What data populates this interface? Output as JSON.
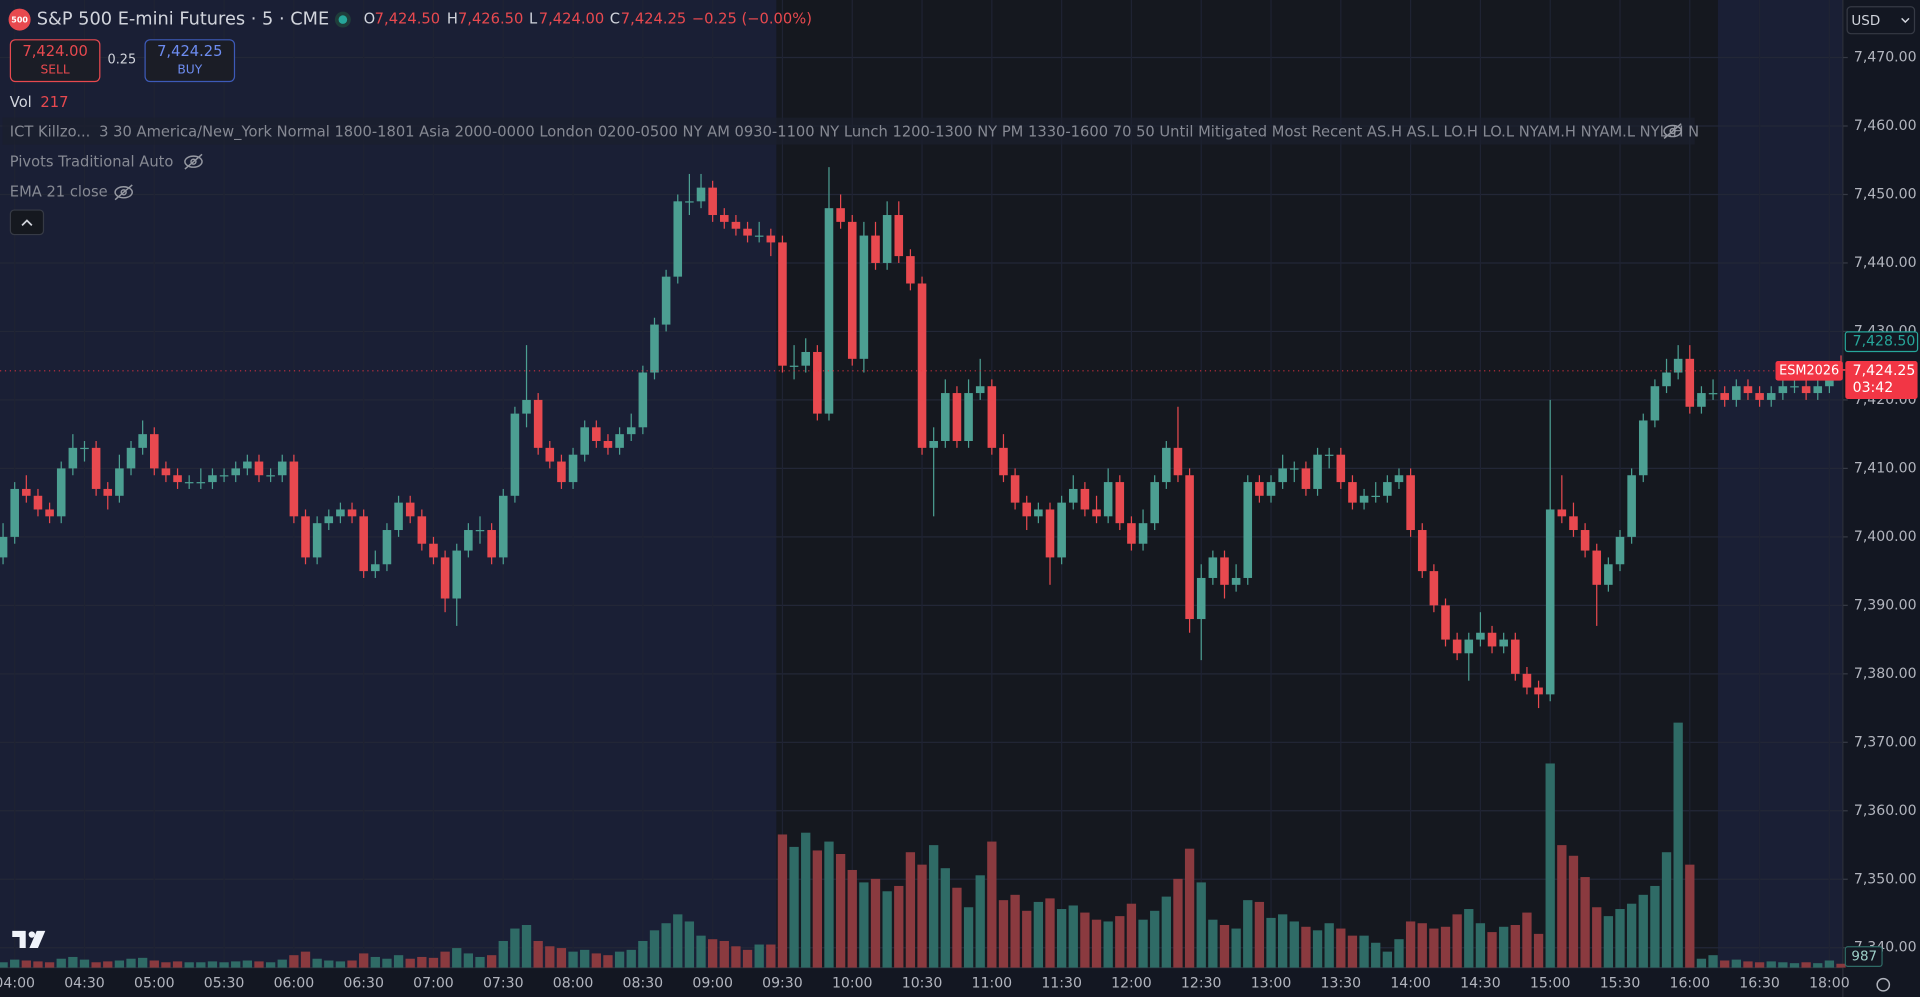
{
  "header": {
    "symbol_badge": "500",
    "title": "S&P 500 E-mini Futures · 5 · CME",
    "ohlc_legend": [
      {
        "key": "O",
        "value": "7,424.50"
      },
      {
        "key": "H",
        "value": "7,426.50"
      },
      {
        "key": "L",
        "value": "7,424.00"
      },
      {
        "key": "C",
        "value": "7,424.25"
      }
    ],
    "change": "−0.25 (−0.00%)",
    "sell": {
      "price": "7,424.00",
      "label": "SELL"
    },
    "spread": "0.25",
    "buy": {
      "price": "7,424.25",
      "label": "BUY"
    },
    "volume_legend": {
      "label": "Vol",
      "value": "217"
    },
    "indicators": [
      {
        "name": "ICT Killzo...",
        "params": "3 30 America/New_York Normal 1800-1801 Asia 2000-0000 London 0200-0500 NY AM 0930-1100 NY Lunch 1200-1300 NY PM 1330-1600 70 50 Until Mitigated Most Recent AS.H AS.L LO.H LO.L NYAM.H NYAM.L NYL.H N"
      },
      {
        "name": "Pivots Traditional Auto"
      },
      {
        "name": "EMA 21 close"
      }
    ],
    "currency": "USD"
  },
  "chart_data": {
    "type": "candlestick",
    "categories": [
      null,
      "04:00",
      null,
      null,
      null,
      null,
      null,
      "04:30",
      null,
      null,
      null,
      null,
      null,
      "05:00",
      null,
      null,
      null,
      null,
      null,
      "05:30",
      null,
      null,
      null,
      null,
      null,
      "06:00",
      null,
      null,
      null,
      null,
      null,
      "06:30",
      null,
      null,
      null,
      null,
      null,
      "07:00",
      null,
      null,
      null,
      null,
      null,
      "07:30",
      null,
      null,
      null,
      null,
      null,
      "08:00",
      null,
      null,
      null,
      null,
      null,
      "08:30",
      null,
      null,
      null,
      null,
      null,
      "09:00",
      null,
      null,
      null,
      null,
      null,
      "09:30",
      null,
      null,
      null,
      null,
      null,
      "10:00",
      null,
      null,
      null,
      null,
      null,
      "10:30",
      null,
      null,
      null,
      null,
      null,
      "11:00",
      null,
      null,
      null,
      null,
      null,
      "11:30",
      null,
      null,
      null,
      null,
      null,
      "12:00",
      null,
      null,
      null,
      null,
      null,
      "12:30",
      null,
      null,
      null,
      null,
      null,
      "13:00",
      null,
      null,
      null,
      null,
      null,
      "13:30",
      null,
      null,
      null,
      null,
      null,
      "14:00",
      null,
      null,
      null,
      null,
      null,
      "14:30",
      null,
      null,
      null,
      null,
      null,
      "15:00",
      null,
      null,
      null,
      null,
      null,
      "15:30",
      null,
      null,
      null,
      null,
      null,
      "16:00",
      null,
      null,
      null,
      null,
      null,
      "16:30",
      null,
      null,
      null,
      null,
      null,
      "18:00",
      null
    ],
    "ohlc": [
      [
        7397,
        7402,
        7396,
        7400
      ],
      [
        7400,
        7408,
        7399,
        7407
      ],
      [
        7407,
        7409,
        7405,
        7406
      ],
      [
        7406,
        7407,
        7403,
        7404
      ],
      [
        7404,
        7405,
        7402,
        7403
      ],
      [
        7403,
        7411,
        7402,
        7410
      ],
      [
        7410,
        7415,
        7409,
        7413
      ],
      [
        7413,
        7414,
        7411,
        7413
      ],
      [
        7413,
        7414,
        7406,
        7407
      ],
      [
        7407,
        7408,
        7404,
        7406
      ],
      [
        7406,
        7412,
        7405,
        7410
      ],
      [
        7410,
        7414,
        7409,
        7413
      ],
      [
        7413,
        7417,
        7412,
        7415
      ],
      [
        7415,
        7416,
        7409,
        7410
      ],
      [
        7410,
        7411,
        7408,
        7409
      ],
      [
        7409,
        7410,
        7407,
        7408
      ],
      [
        7408,
        7409,
        7407,
        7408
      ],
      [
        7408,
        7410,
        7407,
        7408
      ],
      [
        7408,
        7410,
        7407,
        7409
      ],
      [
        7409,
        7410,
        7408,
        7409
      ],
      [
        7409,
        7411,
        7408,
        7410
      ],
      [
        7410,
        7412,
        7409,
        7411
      ],
      [
        7411,
        7412,
        7408,
        7409
      ],
      [
        7409,
        7410,
        7408,
        7409
      ],
      [
        7409,
        7412,
        7408,
        7411
      ],
      [
        7411,
        7412,
        7402,
        7403
      ],
      [
        7403,
        7404,
        7396,
        7397
      ],
      [
        7397,
        7403,
        7396,
        7402
      ],
      [
        7402,
        7404,
        7401,
        7403
      ],
      [
        7403,
        7405,
        7402,
        7404
      ],
      [
        7404,
        7405,
        7402,
        7403
      ],
      [
        7403,
        7404,
        7394,
        7395
      ],
      [
        7395,
        7398,
        7394,
        7396
      ],
      [
        7396,
        7402,
        7395,
        7401
      ],
      [
        7401,
        7406,
        7400,
        7405
      ],
      [
        7405,
        7406,
        7402,
        7403
      ],
      [
        7403,
        7404,
        7398,
        7399
      ],
      [
        7399,
        7400,
        7396,
        7397
      ],
      [
        7397,
        7398,
        7389,
        7391
      ],
      [
        7391,
        7399,
        7387,
        7398
      ],
      [
        7398,
        7402,
        7397,
        7401
      ],
      [
        7401,
        7403,
        7399,
        7401
      ],
      [
        7401,
        7402,
        7396,
        7397
      ],
      [
        7397,
        7407,
        7396,
        7406
      ],
      [
        7406,
        7419,
        7405,
        7418
      ],
      [
        7418,
        7428,
        7416,
        7420
      ],
      [
        7420,
        7421,
        7412,
        7413
      ],
      [
        7413,
        7414,
        7410,
        7411
      ],
      [
        7411,
        7412,
        7407,
        7408
      ],
      [
        7408,
        7413,
        7407,
        7412
      ],
      [
        7412,
        7417,
        7411,
        7416
      ],
      [
        7416,
        7417,
        7413,
        7414
      ],
      [
        7414,
        7415,
        7412,
        7413
      ],
      [
        7413,
        7416,
        7412,
        7415
      ],
      [
        7415,
        7418,
        7414,
        7416
      ],
      [
        7416,
        7425,
        7415,
        7424
      ],
      [
        7424,
        7432,
        7423,
        7431
      ],
      [
        7431,
        7439,
        7430,
        7438
      ],
      [
        7438,
        7450,
        7437,
        7449
      ],
      [
        7449,
        7453,
        7447,
        7449
      ],
      [
        7449,
        7453,
        7448,
        7451
      ],
      [
        7451,
        7452,
        7446,
        7447
      ],
      [
        7447,
        7448,
        7445,
        7446
      ],
      [
        7446,
        7447,
        7444,
        7445
      ],
      [
        7445,
        7446,
        7443,
        7444
      ],
      [
        7444,
        7446,
        7443,
        7444
      ],
      [
        7444,
        7445,
        7441,
        7443
      ],
      [
        7443,
        7444,
        7424,
        7425
      ],
      [
        7425,
        7428,
        7423,
        7425
      ],
      [
        7425,
        7429,
        7424,
        7427
      ],
      [
        7427,
        7428,
        7417,
        7418
      ],
      [
        7418,
        7454,
        7417,
        7448
      ],
      [
        7448,
        7450,
        7445,
        7446
      ],
      [
        7446,
        7447,
        7425,
        7426
      ],
      [
        7426,
        7446,
        7424,
        7444
      ],
      [
        7444,
        7446,
        7439,
        7440
      ],
      [
        7440,
        7449,
        7439,
        7447
      ],
      [
        7447,
        7449,
        7440,
        7441
      ],
      [
        7441,
        7442,
        7436,
        7437
      ],
      [
        7437,
        7438,
        7412,
        7413
      ],
      [
        7413,
        7416,
        7403,
        7414
      ],
      [
        7414,
        7423,
        7413,
        7421
      ],
      [
        7421,
        7422,
        7413,
        7414
      ],
      [
        7414,
        7423,
        7413,
        7421
      ],
      [
        7421,
        7426,
        7420,
        7422
      ],
      [
        7422,
        7423,
        7412,
        7413
      ],
      [
        7413,
        7415,
        7408,
        7409
      ],
      [
        7409,
        7410,
        7404,
        7405
      ],
      [
        7405,
        7406,
        7401,
        7403
      ],
      [
        7403,
        7405,
        7402,
        7404
      ],
      [
        7404,
        7405,
        7393,
        7397
      ],
      [
        7397,
        7406,
        7396,
        7405
      ],
      [
        7405,
        7409,
        7404,
        7407
      ],
      [
        7407,
        7408,
        7403,
        7404
      ],
      [
        7404,
        7406,
        7402,
        7403
      ],
      [
        7403,
        7410,
        7402,
        7408
      ],
      [
        7408,
        7409,
        7401,
        7402
      ],
      [
        7402,
        7403,
        7398,
        7399
      ],
      [
        7399,
        7404,
        7398,
        7402
      ],
      [
        7402,
        7409,
        7401,
        7408
      ],
      [
        7408,
        7414,
        7407,
        7413
      ],
      [
        7413,
        7419,
        7408,
        7409
      ],
      [
        7409,
        7410,
        7386,
        7388
      ],
      [
        7388,
        7396,
        7382,
        7394
      ],
      [
        7394,
        7398,
        7393,
        7397
      ],
      [
        7397,
        7398,
        7391,
        7393
      ],
      [
        7393,
        7396,
        7392,
        7394
      ],
      [
        7394,
        7409,
        7393,
        7408
      ],
      [
        7408,
        7409,
        7405,
        7406
      ],
      [
        7406,
        7409,
        7405,
        7408
      ],
      [
        7408,
        7412,
        7407,
        7410
      ],
      [
        7410,
        7411,
        7408,
        7410
      ],
      [
        7410,
        7411,
        7406,
        7407
      ],
      [
        7407,
        7413,
        7406,
        7412
      ],
      [
        7412,
        7413,
        7410,
        7412
      ],
      [
        7412,
        7413,
        7407,
        7408
      ],
      [
        7408,
        7409,
        7404,
        7405
      ],
      [
        7405,
        7407,
        7404,
        7406
      ],
      [
        7406,
        7408,
        7405,
        7406
      ],
      [
        7406,
        7409,
        7405,
        7408
      ],
      [
        7408,
        7410,
        7407,
        7409
      ],
      [
        7409,
        7410,
        7400,
        7401
      ],
      [
        7401,
        7402,
        7394,
        7395
      ],
      [
        7395,
        7396,
        7389,
        7390
      ],
      [
        7390,
        7391,
        7384,
        7385
      ],
      [
        7385,
        7386,
        7382,
        7383
      ],
      [
        7383,
        7386,
        7379,
        7385
      ],
      [
        7385,
        7389,
        7384,
        7386
      ],
      [
        7386,
        7387,
        7383,
        7384
      ],
      [
        7384,
        7386,
        7383,
        7385
      ],
      [
        7385,
        7386,
        7379,
        7380
      ],
      [
        7380,
        7381,
        7377,
        7378
      ],
      [
        7378,
        7379,
        7375,
        7377
      ],
      [
        7377,
        7420,
        7376,
        7404
      ],
      [
        7404,
        7409,
        7402,
        7403
      ],
      [
        7403,
        7405,
        7400,
        7401
      ],
      [
        7401,
        7402,
        7397,
        7398
      ],
      [
        7398,
        7399,
        7387,
        7393
      ],
      [
        7393,
        7397,
        7392,
        7396
      ],
      [
        7396,
        7401,
        7395,
        7400
      ],
      [
        7400,
        7410,
        7399,
        7409
      ],
      [
        7409,
        7418,
        7408,
        7417
      ],
      [
        7417,
        7423,
        7416,
        7422
      ],
      [
        7422,
        7426,
        7421,
        7424
      ],
      [
        7424,
        7428,
        7423,
        7426
      ],
      [
        7426,
        7428,
        7418,
        7419
      ],
      [
        7419,
        7422,
        7418,
        7421
      ],
      [
        7421,
        7423,
        7420,
        7421
      ],
      [
        7421,
        7422,
        7419,
        7420
      ],
      [
        7420,
        7423,
        7419,
        7422
      ],
      [
        7422,
        7423,
        7420,
        7421
      ],
      [
        7421,
        7422,
        7419,
        7420
      ],
      [
        7420,
        7422,
        7419,
        7421
      ],
      [
        7421,
        7423,
        7420,
        7422
      ],
      [
        7422,
        7423,
        7421,
        7422
      ],
      [
        7422,
        7423,
        7420,
        7421
      ],
      [
        7421,
        7423,
        7420,
        7422
      ],
      [
        7422,
        7425,
        7421,
        7424.5
      ],
      [
        7424.5,
        7426.5,
        7424,
        7424.25
      ]
    ],
    "volume": [
      300,
      450,
      400,
      350,
      300,
      500,
      600,
      450,
      300,
      350,
      400,
      500,
      550,
      400,
      300,
      350,
      300,
      300,
      350,
      300,
      350,
      400,
      350,
      300,
      450,
      700,
      900,
      500,
      400,
      350,
      400,
      800,
      600,
      500,
      700,
      500,
      600,
      550,
      900,
      1100,
      800,
      600,
      700,
      1500,
      2200,
      2400,
      1500,
      1200,
      1100,
      900,
      1000,
      800,
      700,
      900,
      1000,
      1500,
      2100,
      2500,
      3000,
      2600,
      1800,
      1600,
      1500,
      1200,
      1000,
      1300,
      1300,
      7500,
      6800,
      7600,
      6600,
      7100,
      6400,
      5500,
      4800,
      5000,
      4300,
      4600,
      6500,
      5800,
      6900,
      5600,
      4500,
      3400,
      5200,
      7100,
      3800,
      4100,
      3200,
      3700,
      3900,
      3300,
      3500,
      3100,
      2700,
      2600,
      2900,
      3600,
      2700,
      3200,
      4000,
      5000,
      6700,
      4800,
      2700,
      2400,
      2200,
      3800,
      3700,
      2800,
      3000,
      2600,
      2300,
      2100,
      2500,
      2200,
      1800,
      1800,
      1400,
      900,
      1600,
      2600,
      2500,
      2200,
      2300,
      3000,
      3300,
      2500,
      2000,
      2300,
      2400,
      3100,
      1900,
      11500,
      6900,
      6300,
      5100,
      3400,
      2900,
      3300,
      3600,
      4100,
      4600,
      6500,
      13800,
      5800,
      500,
      700,
      400,
      450,
      350,
      300,
      350,
      300,
      250,
      300,
      250,
      400,
      217
    ],
    "up_color": "#4c9f92",
    "down_color": "#e8494f",
    "volume_up_color": "#2f6b66",
    "volume_down_color": "#8a3a3f",
    "ylim": [
      7337.1,
      7478.4
    ],
    "yticks": [
      {
        "value": 7340,
        "label": "7,340.00"
      },
      {
        "value": 7350,
        "label": "7,350.00"
      },
      {
        "value": 7360,
        "label": "7,360.00"
      },
      {
        "value": 7370,
        "label": "7,370.00"
      },
      {
        "value": 7380,
        "label": "7,380.00"
      },
      {
        "value": 7390,
        "label": "7,390.00"
      },
      {
        "value": 7400,
        "label": "7,400.00"
      },
      {
        "value": 7410,
        "label": "7,410.00"
      },
      {
        "value": 7420,
        "label": "7,420.00"
      },
      {
        "value": 7430,
        "label": "7,430.00"
      },
      {
        "value": 7440,
        "label": "7,440.00"
      },
      {
        "value": 7450,
        "label": "7,450.00"
      },
      {
        "value": 7460,
        "label": "7,460.00"
      },
      {
        "value": 7470,
        "label": "7,470.00"
      }
    ],
    "grid": true,
    "price_tags": [
      {
        "value": 7428.5,
        "label": "7,428.50",
        "color": "#26a69a"
      }
    ],
    "last_price": {
      "value": 7424.25,
      "label": "7,424.25",
      "symbol": "ESM2026",
      "countdown": "03:42",
      "color": "#f23645"
    },
    "volume_label": "987"
  }
}
